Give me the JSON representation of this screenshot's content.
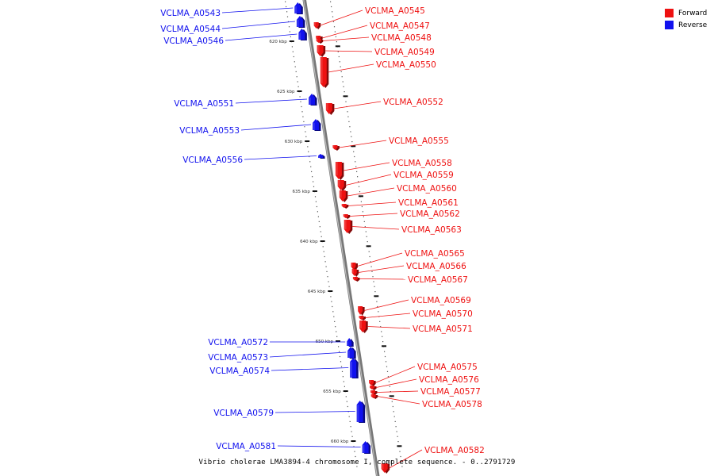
{
  "title": "Vibrio cholerae LMA3894-4 chromosome I, complete sequence. - 0..2791729",
  "legend": {
    "forward_label": "Forward",
    "reverse_label": "Reverse",
    "forward_color": "#ee1111",
    "reverse_color": "#1111ee"
  },
  "ticks": [
    {
      "label": "620 kbp",
      "kbp": 620
    },
    {
      "label": "625 kbp",
      "kbp": 625
    },
    {
      "label": "630 kbp",
      "kbp": 630
    },
    {
      "label": "635 kbp",
      "kbp": 635
    },
    {
      "label": "640 kbp",
      "kbp": 640
    },
    {
      "label": "645 kbp",
      "kbp": 645
    },
    {
      "label": "650 kbp",
      "kbp": 650
    },
    {
      "label": "655 kbp",
      "kbp": 655
    },
    {
      "label": "660 kbp",
      "kbp": 660
    }
  ],
  "genes": [
    {
      "name": "VCLMA_A0543",
      "strand": "reverse"
    },
    {
      "name": "VCLMA_A0544",
      "strand": "reverse"
    },
    {
      "name": "VCLMA_A0545",
      "strand": "forward"
    },
    {
      "name": "VCLMA_A0546",
      "strand": "reverse"
    },
    {
      "name": "VCLMA_A0547",
      "strand": "forward"
    },
    {
      "name": "VCLMA_A0548",
      "strand": "forward"
    },
    {
      "name": "VCLMA_A0549",
      "strand": "forward"
    },
    {
      "name": "VCLMA_A0550",
      "strand": "forward"
    },
    {
      "name": "VCLMA_A0551",
      "strand": "reverse"
    },
    {
      "name": "VCLMA_A0552",
      "strand": "forward"
    },
    {
      "name": "VCLMA_A0553",
      "strand": "reverse"
    },
    {
      "name": "VCLMA_A0555",
      "strand": "forward"
    },
    {
      "name": "VCLMA_A0556",
      "strand": "reverse"
    },
    {
      "name": "VCLMA_A0558",
      "strand": "forward"
    },
    {
      "name": "VCLMA_A0559",
      "strand": "forward"
    },
    {
      "name": "VCLMA_A0560",
      "strand": "forward"
    },
    {
      "name": "VCLMA_A0561",
      "strand": "forward"
    },
    {
      "name": "VCLMA_A0562",
      "strand": "forward"
    },
    {
      "name": "VCLMA_A0563",
      "strand": "forward"
    },
    {
      "name": "VCLMA_A0565",
      "strand": "forward"
    },
    {
      "name": "VCLMA_A0566",
      "strand": "forward"
    },
    {
      "name": "VCLMA_A0567",
      "strand": "forward"
    },
    {
      "name": "VCLMA_A0569",
      "strand": "forward"
    },
    {
      "name": "VCLMA_A0570",
      "strand": "forward"
    },
    {
      "name": "VCLMA_A0571",
      "strand": "forward"
    },
    {
      "name": "VCLMA_A0572",
      "strand": "reverse"
    },
    {
      "name": "VCLMA_A0573",
      "strand": "reverse"
    },
    {
      "name": "VCLMA_A0574",
      "strand": "reverse"
    },
    {
      "name": "VCLMA_A0575",
      "strand": "forward"
    },
    {
      "name": "VCLMA_A0576",
      "strand": "forward"
    },
    {
      "name": "VCLMA_A0577",
      "strand": "forward"
    },
    {
      "name": "VCLMA_A0578",
      "strand": "forward"
    },
    {
      "name": "VCLMA_A0579",
      "strand": "reverse"
    },
    {
      "name": "VCLMA_A0581",
      "strand": "reverse"
    },
    {
      "name": "VCLMA_A0582",
      "strand": "forward"
    }
  ]
}
